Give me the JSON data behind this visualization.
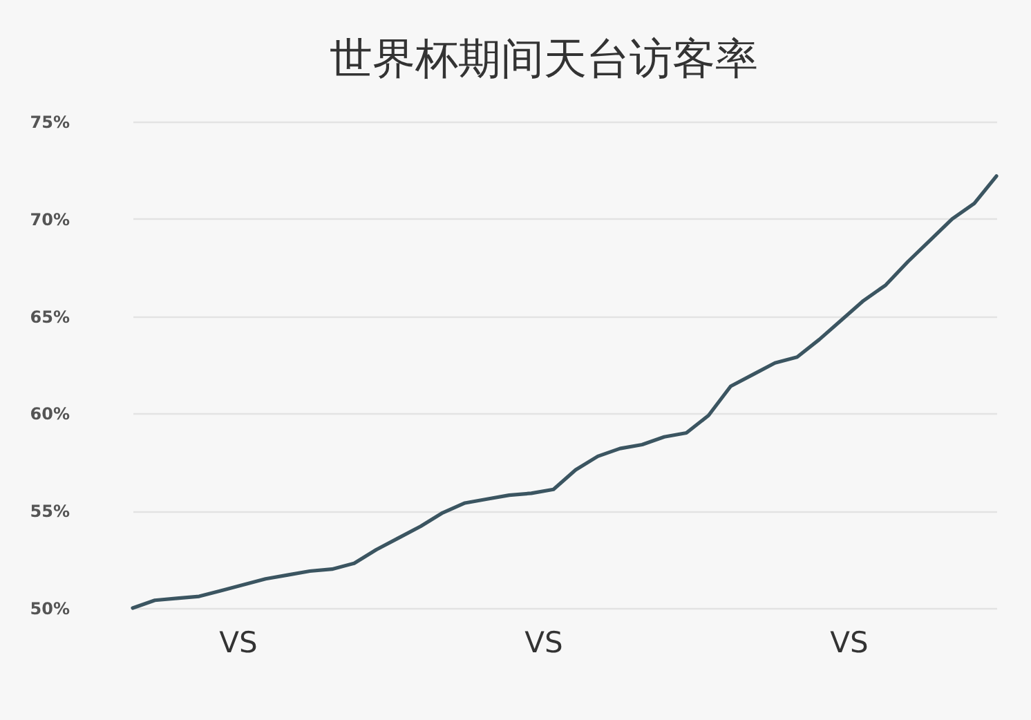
{
  "chart_data": {
    "type": "line",
    "title": "世界杯期间天台访客率",
    "categories": [
      null,
      null,
      null,
      null,
      null,
      null,
      null,
      null,
      null,
      null,
      null,
      null,
      null,
      null,
      null,
      null,
      null,
      null,
      null,
      null,
      null,
      null,
      null,
      null,
      null,
      null,
      null,
      null,
      null,
      null,
      null,
      null,
      null,
      null,
      null,
      null,
      null,
      null,
      null,
      null
    ],
    "series": [
      {
        "color": "#3b5561",
        "values": [
          50.0,
          50.4,
          50.5,
          50.6,
          50.9,
          51.2,
          51.5,
          51.7,
          51.9,
          52.0,
          52.3,
          53.0,
          53.6,
          54.2,
          54.9,
          55.4,
          55.6,
          55.8,
          55.9,
          56.1,
          57.1,
          57.8,
          58.2,
          58.4,
          58.8,
          59.0,
          59.9,
          61.4,
          62.0,
          62.6,
          62.9,
          63.8,
          64.8,
          65.8,
          66.6,
          67.8,
          68.9,
          70.0,
          70.8,
          72.2
        ]
      }
    ],
    "ylim": [
      50,
      75
    ],
    "yticks": [
      {
        "value": 50,
        "label": "50%"
      },
      {
        "value": 55,
        "label": "55%"
      },
      {
        "value": 60,
        "label": "60%"
      },
      {
        "value": 65,
        "label": "65%"
      },
      {
        "value": 70,
        "label": "70%"
      },
      {
        "value": 75,
        "label": "75%"
      }
    ],
    "grid": "y",
    "marker": "none",
    "line_style": "solid",
    "tick_labels": "y",
    "annotations": [
      "VS",
      "VS",
      "VS"
    ]
  }
}
